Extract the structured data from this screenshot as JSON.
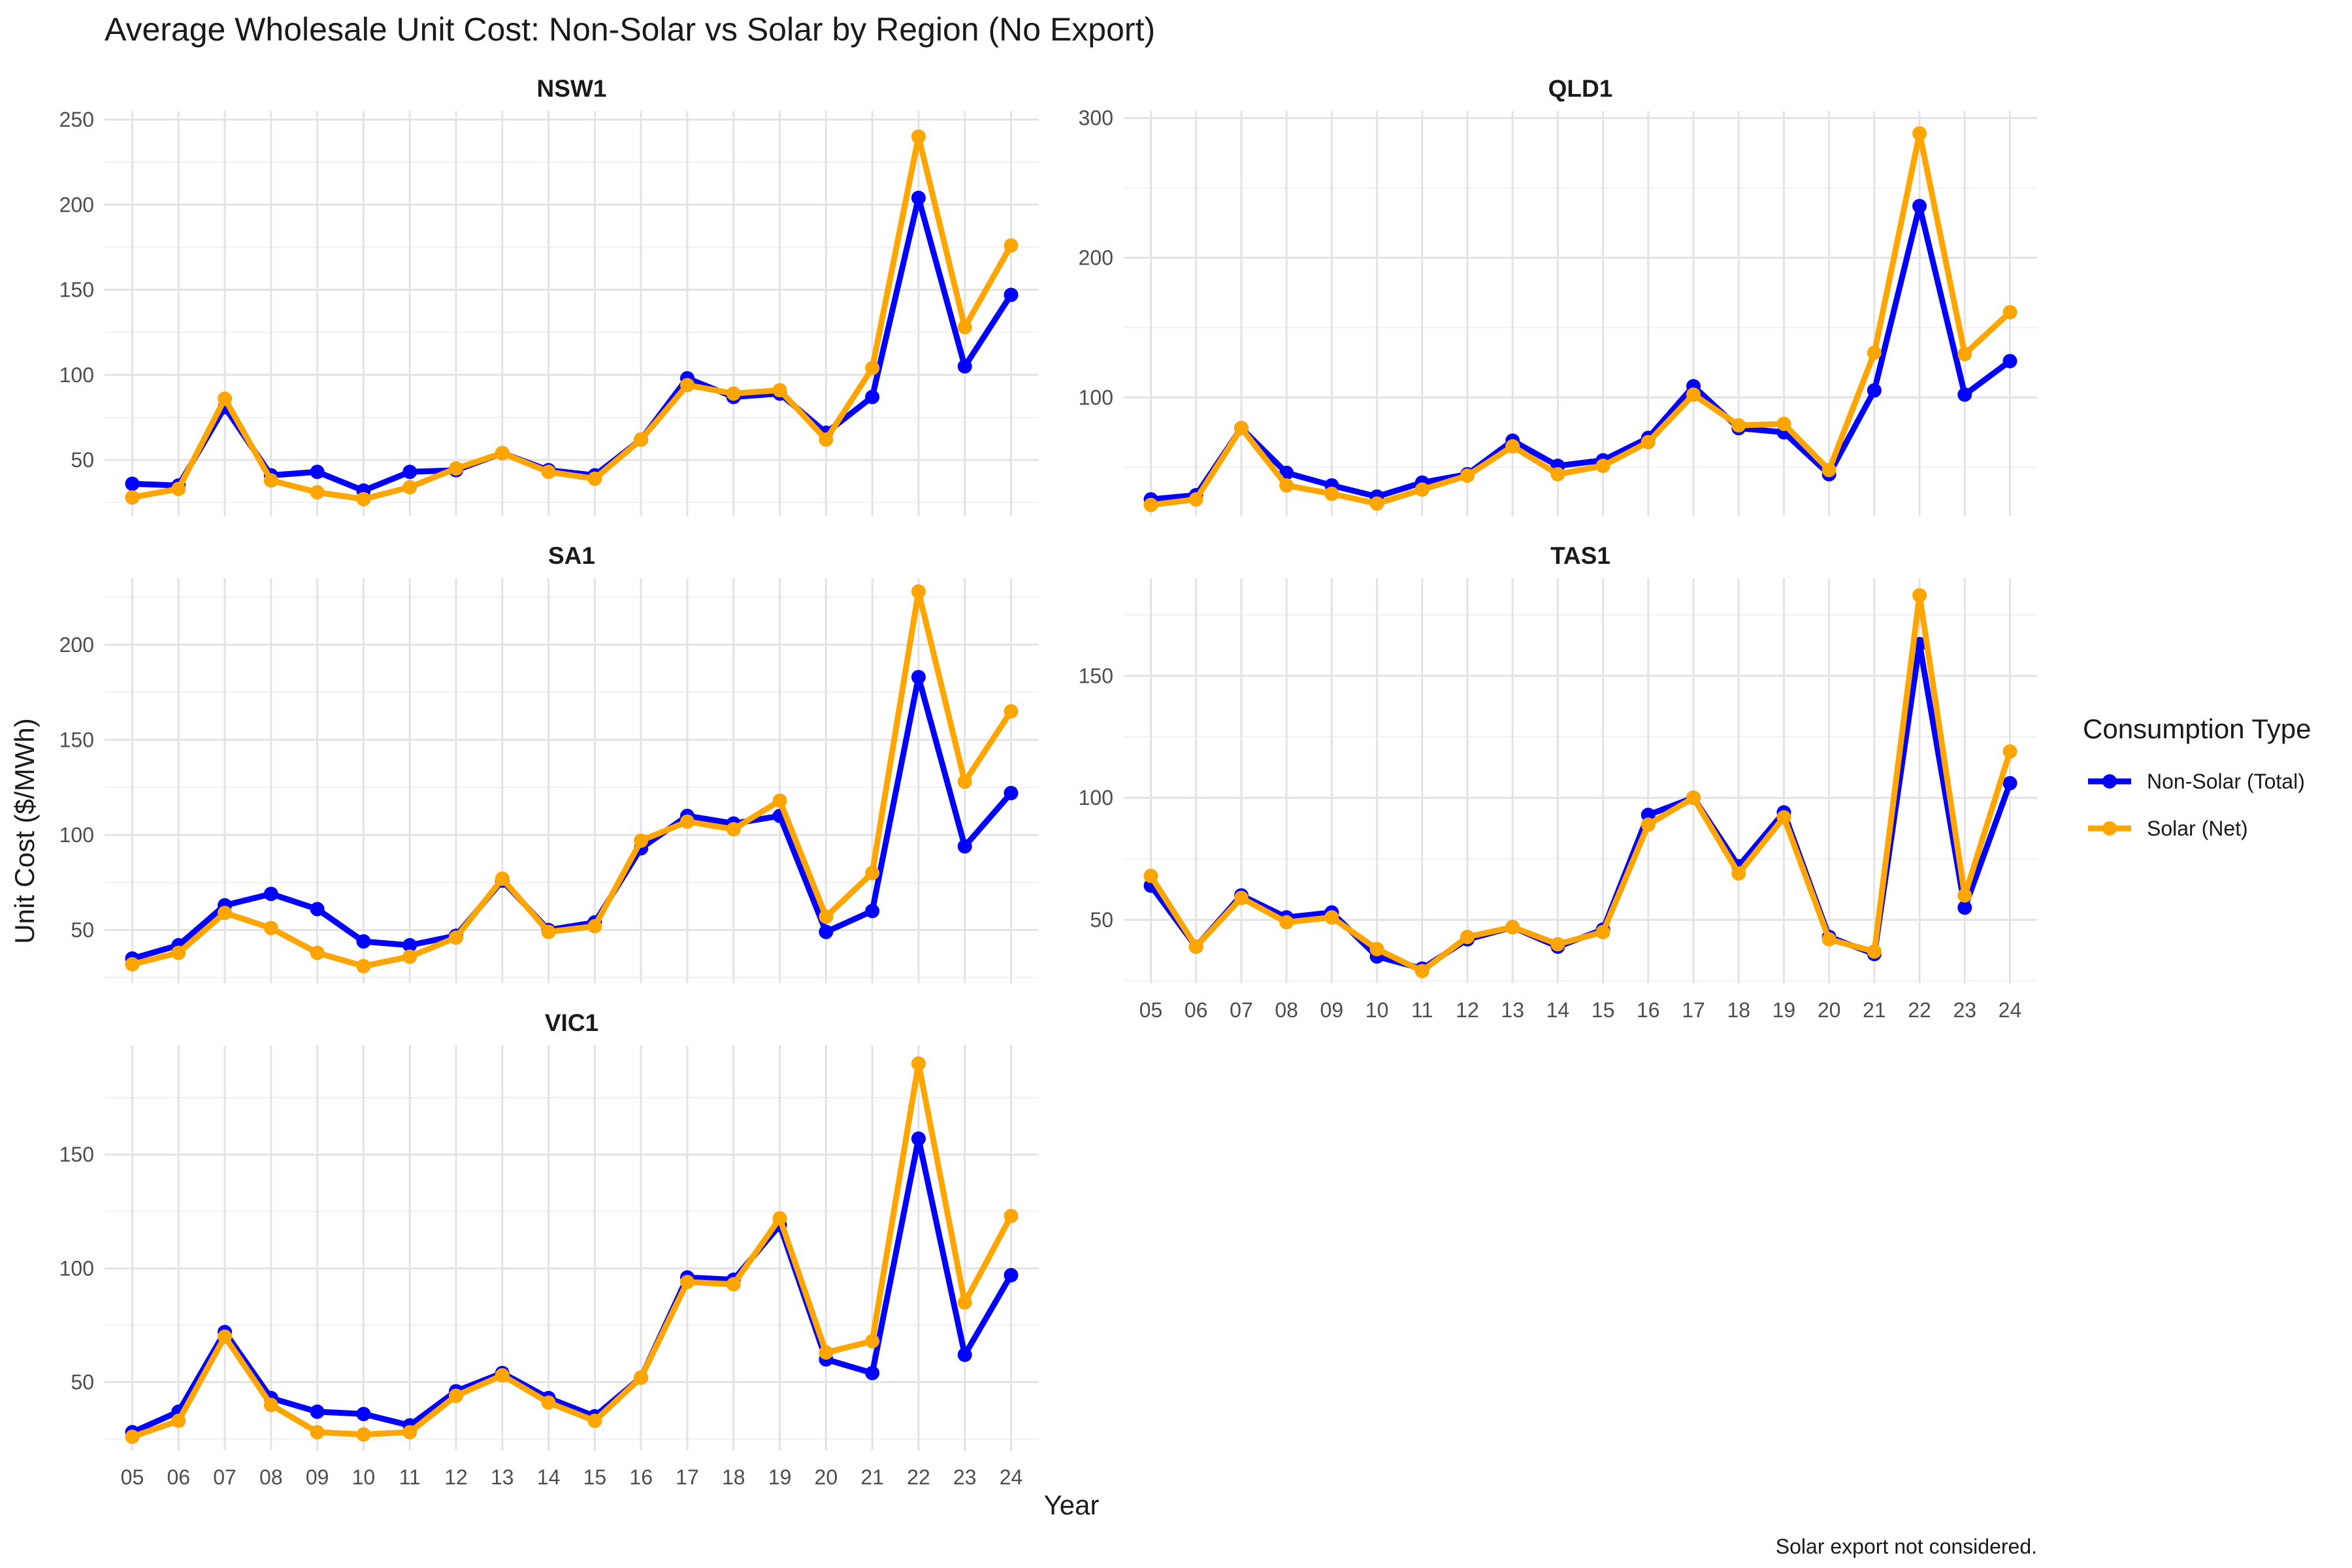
{
  "chart_data": {
    "type": "line",
    "title": "Average Wholesale Unit Cost: Non-Solar vs Solar by Region (No Export)",
    "xlabel": "Year",
    "ylabel": "Unit Cost ($/MWh)",
    "caption": "Solar export not considered.",
    "categories": [
      "05",
      "06",
      "07",
      "08",
      "09",
      "10",
      "11",
      "12",
      "13",
      "14",
      "15",
      "16",
      "17",
      "18",
      "19",
      "20",
      "21",
      "22",
      "23",
      "24"
    ],
    "legend": {
      "title": "Consumption Type",
      "position": "right",
      "entries": [
        {
          "name": "Non-Solar (Total)",
          "color": "#0000ff"
        },
        {
          "name": "Solar (Net)",
          "color": "#ffa500"
        }
      ]
    },
    "panels": [
      {
        "name": "NSW1",
        "ylim": [
          17,
          255
        ],
        "yticks": [
          50,
          100,
          150,
          200,
          250
        ],
        "series": [
          {
            "name": "Non-Solar (Total)",
            "values": [
              36,
              35,
              81,
              41,
              43,
              32,
              43,
              44,
              54,
              44,
              41,
              62,
              98,
              87,
              89,
              66,
              87,
              204,
              105,
              147
            ]
          },
          {
            "name": "Solar (Net)",
            "values": [
              28,
              33,
              86,
              38,
              31,
              27,
              34,
              45,
              54,
              43,
              39,
              62,
              94,
              89,
              91,
              62,
              104,
              240,
              128,
              176
            ]
          }
        ]
      },
      {
        "name": "QLD1",
        "ylim": [
          15,
          305
        ],
        "yticks": [
          100,
          200,
          300
        ],
        "series": [
          {
            "name": "Non-Solar (Total)",
            "values": [
              27,
              30,
              78,
              46,
              37,
              29,
              39,
              45,
              69,
              51,
              55,
              71,
              108,
              78,
              75,
              45,
              105,
              237,
              102,
              126
            ]
          },
          {
            "name": "Solar (Net)",
            "values": [
              23,
              27,
              78,
              37,
              31,
              24,
              34,
              44,
              65,
              45,
              51,
              68,
              102,
              80,
              81,
              48,
              132,
              289,
              131,
              161
            ]
          }
        ]
      },
      {
        "name": "SA1",
        "ylim": [
          22,
          235
        ],
        "yticks": [
          50,
          100,
          150,
          200
        ],
        "series": [
          {
            "name": "Non-Solar (Total)",
            "values": [
              35,
              42,
              63,
              69,
              61,
              44,
              42,
              47,
              76,
              50,
              54,
              93,
              110,
              106,
              110,
              49,
              60,
              183,
              94,
              122
            ]
          },
          {
            "name": "Solar (Net)",
            "values": [
              32,
              38,
              59,
              51,
              38,
              31,
              36,
              46,
              77,
              49,
              52,
              97,
              107,
              103,
              118,
              57,
              80,
              228,
              128,
              165
            ]
          }
        ]
      },
      {
        "name": "TAS1",
        "ylim": [
          24,
          190
        ],
        "yticks": [
          50,
          100,
          150
        ],
        "series": [
          {
            "name": "Non-Solar (Total)",
            "values": [
              64,
              39,
              60,
              51,
              53,
              35,
              30,
              42,
              47,
              39,
              46,
              93,
              100,
              72,
              94,
              43,
              36,
              163,
              55,
              106
            ]
          },
          {
            "name": "Solar (Net)",
            "values": [
              68,
              39,
              59,
              49,
              51,
              38,
              29,
              43,
              47,
              40,
              45,
              89,
              100,
              69,
              92,
              42,
              37,
              183,
              60,
              119
            ]
          }
        ]
      },
      {
        "name": "VIC1",
        "ylim": [
          20,
          198
        ],
        "yticks": [
          50,
          100,
          150
        ],
        "series": [
          {
            "name": "Non-Solar (Total)",
            "values": [
              28,
              37,
              72,
              43,
              37,
              36,
              31,
              46,
              54,
              43,
              35,
              52,
              96,
              95,
              119,
              60,
              54,
              157,
              62,
              97
            ]
          },
          {
            "name": "Solar (Net)",
            "values": [
              26,
              33,
              70,
              40,
              28,
              27,
              28,
              44,
              53,
              41,
              33,
              52,
              94,
              93,
              122,
              63,
              68,
              190,
              85,
              123
            ]
          }
        ]
      }
    ]
  }
}
